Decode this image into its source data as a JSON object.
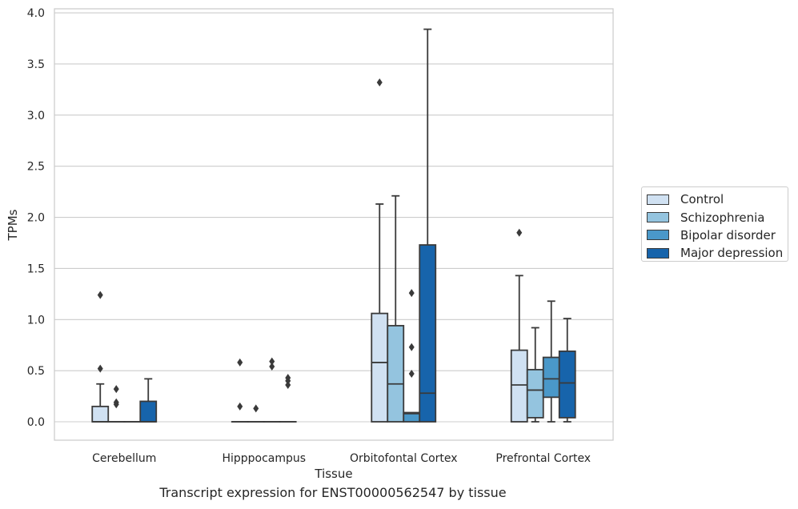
{
  "chart_data": {
    "type": "box",
    "caption": "Transcript expression for ENST00000562547 by tissue",
    "xlabel": "Tissue",
    "ylabel": "TPMs",
    "ylim": [
      -0.18,
      4.04
    ],
    "yticks": [
      "0.0",
      "0.5",
      "1.0",
      "1.5",
      "2.0",
      "2.5",
      "3.0",
      "3.5",
      "4.0"
    ],
    "ytick_values": [
      0.0,
      0.5,
      1.0,
      1.5,
      2.0,
      2.5,
      3.0,
      3.5,
      4.0
    ],
    "grid": "horizontal",
    "legend_position": "right, outside plot",
    "categories": [
      "Cerebellum",
      "Hipppocampus",
      "Orbitofontal Cortex",
      "Prefrontal Cortex"
    ],
    "series": [
      {
        "name": "Control",
        "color": "#d0e1f2",
        "boxes": [
          {
            "q1": 0.0,
            "median": 0.0,
            "q3": 0.15,
            "whisker_low": 0.0,
            "whisker_high": 0.37,
            "outliers": [
              0.52,
              1.24
            ]
          },
          {
            "q1": 0.0,
            "median": 0.0,
            "q3": 0.0,
            "whisker_low": 0.0,
            "whisker_high": 0.0,
            "outliers": [
              0.15,
              0.58
            ]
          },
          {
            "q1": 0.0,
            "median": 0.58,
            "q3": 1.06,
            "whisker_low": 0.0,
            "whisker_high": 2.13,
            "outliers": [
              3.32
            ]
          },
          {
            "q1": 0.0,
            "median": 0.36,
            "q3": 0.7,
            "whisker_low": 0.0,
            "whisker_high": 1.43,
            "outliers": [
              1.85
            ]
          }
        ]
      },
      {
        "name": "Schizophrenia",
        "color": "#94c4df",
        "boxes": [
          {
            "q1": 0.0,
            "median": 0.0,
            "q3": 0.0,
            "whisker_low": 0.0,
            "whisker_high": 0.0,
            "outliers": [
              0.17,
              0.19,
              0.32
            ]
          },
          {
            "q1": 0.0,
            "median": 0.0,
            "q3": 0.0,
            "whisker_low": 0.0,
            "whisker_high": 0.0,
            "outliers": [
              0.13
            ]
          },
          {
            "q1": 0.0,
            "median": 0.37,
            "q3": 0.94,
            "whisker_low": 0.0,
            "whisker_high": 2.21,
            "outliers": []
          },
          {
            "q1": 0.04,
            "median": 0.31,
            "q3": 0.51,
            "whisker_low": 0.0,
            "whisker_high": 0.92,
            "outliers": []
          }
        ]
      },
      {
        "name": "Bipolar disorder",
        "color": "#4a98c9",
        "boxes": [
          {
            "q1": 0.0,
            "median": 0.0,
            "q3": 0.0,
            "whisker_low": 0.0,
            "whisker_high": 0.0,
            "outliers": []
          },
          {
            "q1": 0.0,
            "median": 0.0,
            "q3": 0.0,
            "whisker_low": 0.0,
            "whisker_high": 0.0,
            "outliers": [
              0.54,
              0.59
            ]
          },
          {
            "q1": 0.0,
            "median": 0.08,
            "q3": 0.09,
            "whisker_low": 0.0,
            "whisker_high": 0.09,
            "outliers": [
              0.47,
              0.73,
              1.26
            ]
          },
          {
            "q1": 0.24,
            "median": 0.42,
            "q3": 0.63,
            "whisker_low": 0.0,
            "whisker_high": 1.18,
            "outliers": []
          }
        ]
      },
      {
        "name": "Major depression",
        "color": "#1764ab",
        "boxes": [
          {
            "q1": 0.0,
            "median": 0.0,
            "q3": 0.2,
            "whisker_low": 0.0,
            "whisker_high": 0.42,
            "outliers": []
          },
          {
            "q1": 0.0,
            "median": 0.0,
            "q3": 0.0,
            "whisker_low": 0.0,
            "whisker_high": 0.0,
            "outliers": [
              0.36,
              0.4,
              0.43
            ]
          },
          {
            "q1": 0.0,
            "median": 0.28,
            "q3": 1.73,
            "whisker_low": 0.0,
            "whisker_high": 3.84,
            "outliers": []
          },
          {
            "q1": 0.04,
            "median": 0.38,
            "q3": 0.69,
            "whisker_low": 0.0,
            "whisker_high": 1.01,
            "outliers": []
          }
        ]
      }
    ]
  }
}
